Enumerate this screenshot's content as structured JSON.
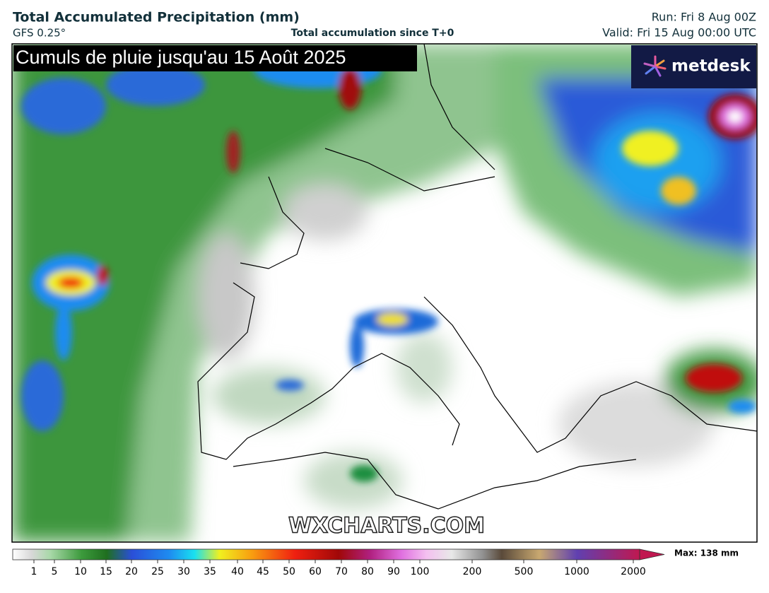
{
  "header": {
    "title": "Total Accumulated Precipitation (mm)",
    "model": "GFS 0.25°",
    "subtitle": "Total accumulation since T+0",
    "run": "Run: Fri 8 Aug 00Z",
    "valid": "Valid: Fri 15 Aug 00:00 UTC"
  },
  "map": {
    "caption": "Cumuls de pluie jusqu'au 15 Août 2025",
    "logo": "metdesk",
    "watermark": "WXCHARTS.COM"
  },
  "legend": {
    "ticks": [
      1,
      5,
      10,
      15,
      20,
      25,
      30,
      35,
      40,
      45,
      50,
      60,
      70,
      80,
      90,
      100,
      200,
      500,
      1000,
      2000
    ],
    "max_label": "Max: 138 mm"
  }
}
